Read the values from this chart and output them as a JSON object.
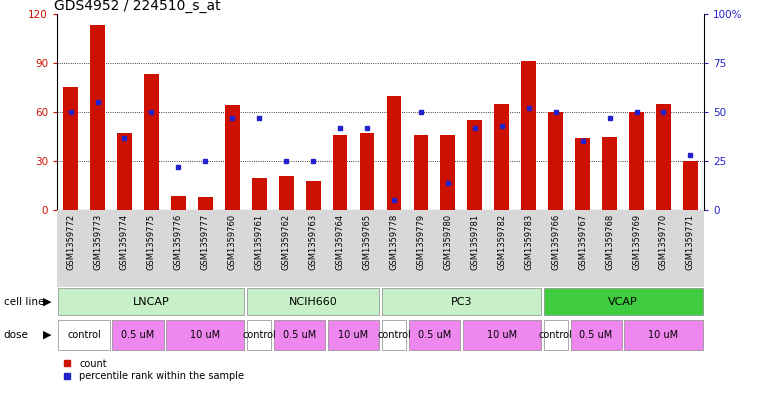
{
  "title": "GDS4952 / 224510_s_at",
  "samples": [
    "GSM1359772",
    "GSM1359773",
    "GSM1359774",
    "GSM1359775",
    "GSM1359776",
    "GSM1359777",
    "GSM1359760",
    "GSM1359761",
    "GSM1359762",
    "GSM1359763",
    "GSM1359764",
    "GSM1359765",
    "GSM1359778",
    "GSM1359779",
    "GSM1359780",
    "GSM1359781",
    "GSM1359782",
    "GSM1359783",
    "GSM1359766",
    "GSM1359767",
    "GSM1359768",
    "GSM1359769",
    "GSM1359770",
    "GSM1359771"
  ],
  "counts": [
    75,
    113,
    47,
    83,
    9,
    8,
    64,
    20,
    21,
    18,
    46,
    47,
    70,
    46,
    46,
    55,
    65,
    91,
    60,
    44,
    45,
    60,
    65,
    30
  ],
  "percentiles": [
    50,
    55,
    37,
    50,
    22,
    25,
    47,
    47,
    25,
    25,
    42,
    42,
    5,
    50,
    14,
    42,
    43,
    52,
    50,
    35,
    47,
    50,
    50,
    28
  ],
  "cell_lines": [
    {
      "name": "LNCAP",
      "start": 0,
      "end": 7,
      "color": "#c8f0c8"
    },
    {
      "name": "NCIH660",
      "start": 7,
      "end": 12,
      "color": "#c8f0c8"
    },
    {
      "name": "PC3",
      "start": 12,
      "end": 18,
      "color": "#c8f0c8"
    },
    {
      "name": "VCAP",
      "start": 18,
      "end": 24,
      "color": "#40cc40"
    }
  ],
  "doses": [
    {
      "label": "control",
      "start": 0,
      "end": 2,
      "color": "#ffffff"
    },
    {
      "label": "0.5 uM",
      "start": 2,
      "end": 4,
      "color": "#ee88ee"
    },
    {
      "label": "10 uM",
      "start": 4,
      "end": 7,
      "color": "#ee88ee"
    },
    {
      "label": "control",
      "start": 7,
      "end": 8,
      "color": "#ffffff"
    },
    {
      "label": "0.5 uM",
      "start": 8,
      "end": 10,
      "color": "#ee88ee"
    },
    {
      "label": "10 uM",
      "start": 10,
      "end": 12,
      "color": "#ee88ee"
    },
    {
      "label": "control",
      "start": 12,
      "end": 13,
      "color": "#ffffff"
    },
    {
      "label": "0.5 uM",
      "start": 13,
      "end": 15,
      "color": "#ee88ee"
    },
    {
      "label": "10 uM",
      "start": 15,
      "end": 18,
      "color": "#ee88ee"
    },
    {
      "label": "control",
      "start": 18,
      "end": 19,
      "color": "#ffffff"
    },
    {
      "label": "0.5 uM",
      "start": 19,
      "end": 21,
      "color": "#ee88ee"
    },
    {
      "label": "10 uM",
      "start": 21,
      "end": 24,
      "color": "#ee88ee"
    }
  ],
  "ylim_left": [
    0,
    120
  ],
  "ylim_right": [
    0,
    100
  ],
  "yticks_left": [
    0,
    30,
    60,
    90,
    120
  ],
  "yticks_right": [
    0,
    25,
    50,
    75,
    100
  ],
  "ytick_labels_right": [
    "0",
    "25",
    "50",
    "75",
    "100%"
  ],
  "bar_color": "#cc1100",
  "dot_color": "#2222cc",
  "bg_color": "#ffffff",
  "label_bg": "#d8d8d8",
  "grid_color": "#000000",
  "title_fontsize": 10,
  "left_tick_color": "#cc1100",
  "right_tick_color": "#2222cc"
}
